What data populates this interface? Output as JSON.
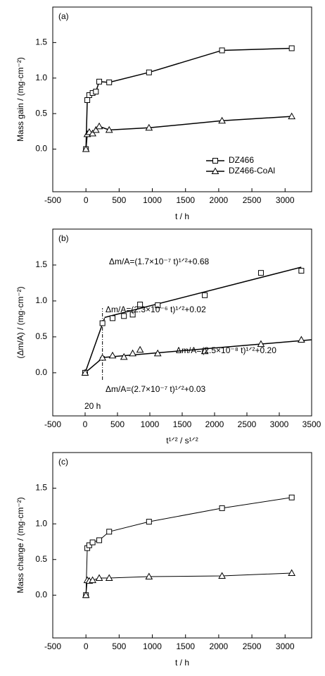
{
  "chart_data": [
    {
      "type": "line",
      "title": "(a)",
      "x_label": "t / h",
      "y_label": "Mass gain / (mg·cm⁻²)",
      "x": [
        0,
        20,
        50,
        100,
        150,
        200,
        350,
        950,
        2050,
        3100
      ],
      "series": [
        {
          "name": "DZ466",
          "color": "#000000",
          "marker": "square",
          "values": [
            0,
            0.69,
            0.76,
            0.79,
            0.81,
            0.95,
            0.94,
            1.08,
            1.39,
            1.42
          ]
        },
        {
          "name": "DZ466-CoAl",
          "color": "#000000",
          "marker": "triangle",
          "values": [
            0,
            0.21,
            0.24,
            0.22,
            0.27,
            0.32,
            0.27,
            0.3,
            0.4,
            0.46
          ]
        }
      ],
      "xlim": [
        -500,
        3400
      ],
      "ylim": [
        -0.6,
        2.0
      ],
      "xticks": [
        -500,
        0,
        500,
        1000,
        1500,
        2000,
        2500,
        3000
      ],
      "yticks": [
        {
          "value": 0,
          "label": "0.0"
        },
        0.5,
        {
          "value": 1,
          "label": "1.0"
        },
        1.5
      ],
      "legend": "lower right"
    },
    {
      "type": "scatter",
      "title": "(b)",
      "x_label": "t¹ᐟ² / s¹ᐟ²",
      "y_label": "(Δm/A) / (mg·cm⁻²)",
      "x": [
        0,
        268,
        424,
        600,
        735,
        849,
        1122,
        1849,
        2717,
        3341
      ],
      "series": [
        {
          "color": "#000000",
          "marker": "square",
          "values": [
            0,
            0.69,
            0.76,
            0.79,
            0.81,
            0.95,
            0.94,
            1.08,
            1.39,
            1.42
          ]
        },
        {
          "color": "#000000",
          "marker": "triangle",
          "values": [
            0,
            0.21,
            0.24,
            0.22,
            0.27,
            0.32,
            0.27,
            0.3,
            0.4,
            0.46
          ]
        }
      ],
      "fit_lines": [
        {
          "x": [
            0,
            300
          ],
          "values": [
            0,
            0.76
          ]
        },
        {
          "x": [
            300,
            3340
          ],
          "values": [
            0.77,
            1.47
          ]
        },
        {
          "x": [
            0,
            300
          ],
          "values": [
            0,
            0.23
          ]
        },
        {
          "x": [
            230,
            3500
          ],
          "values": [
            0.21,
            0.46
          ]
        }
      ],
      "vline": {
        "x": 268,
        "y": [
          -0.1,
          0.9
        ]
      },
      "annotations": [
        "Δm/A=(1.7×10⁻⁷ t)¹ᐟ²+0.68",
        "Δm/A=(2.3×10⁻⁶ t)¹ᐟ²+0.02",
        "Δm/A=(2.5×10⁻⁸ t)¹ᐟ²+0.20",
        "Δm/A=(2.7×10⁻⁷ t)¹ᐟ²+0.03",
        "20 h"
      ],
      "xlim": [
        -500,
        3500
      ],
      "ylim": [
        -0.6,
        2.0
      ],
      "xticks": [
        -500,
        0,
        500,
        1000,
        1500,
        2000,
        2500,
        3000,
        3500
      ],
      "yticks": [
        {
          "value": 0,
          "label": "0.0"
        },
        0.5,
        {
          "value": 1,
          "label": "1.0"
        },
        1.5
      ]
    },
    {
      "type": "line",
      "title": "(c)",
      "x_label": "t / h",
      "y_label": "Mass change / (mg·cm⁻²)",
      "x": [
        0,
        20,
        50,
        100,
        200,
        350,
        950,
        2050,
        3100
      ],
      "series": [
        {
          "color": "#000000",
          "marker": "square",
          "values": [
            0,
            0.66,
            0.7,
            0.74,
            0.77,
            0.89,
            1.03,
            1.22,
            1.37
          ]
        },
        {
          "color": "#000000",
          "marker": "triangle",
          "values": [
            0,
            0.21,
            0.2,
            0.21,
            0.24,
            0.24,
            0.26,
            0.27,
            0.31
          ]
        }
      ],
      "xlim": [
        -500,
        3400
      ],
      "ylim": [
        -0.6,
        2.0
      ],
      "xticks": [
        -500,
        0,
        500,
        1000,
        1500,
        2000,
        2500,
        3000
      ],
      "yticks": [
        {
          "value": 0,
          "label": "0.0"
        },
        0.5,
        {
          "value": 1,
          "label": "1.0"
        },
        1.5
      ]
    }
  ]
}
